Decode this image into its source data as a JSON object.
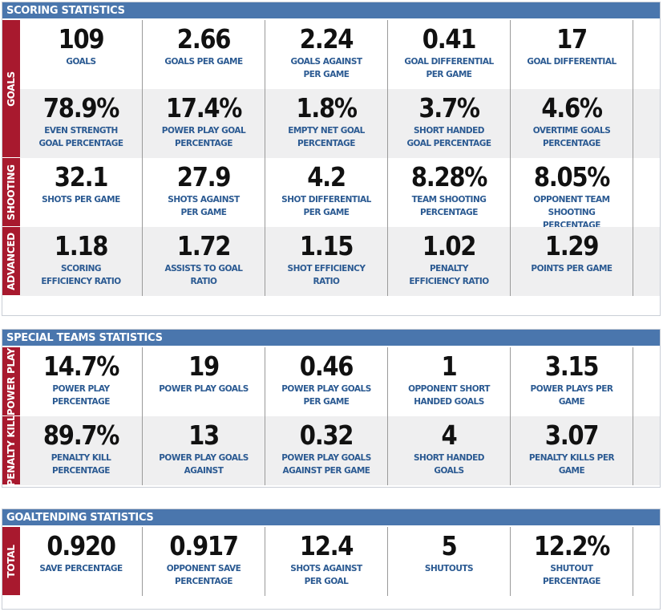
{
  "scoring": {
    "title": "SCORING STATISTICS",
    "groups": [
      {
        "label": "GOALS",
        "rows": [
          [
            {
              "value": "109",
              "label": "GOALS"
            },
            {
              "value": "2.66",
              "label": "GOALS PER GAME"
            },
            {
              "value": "2.24",
              "label": "GOALS AGAINST PER GAME"
            },
            {
              "value": "0.41",
              "label": "GOAL DIFFERENTIAL PER GAME"
            },
            {
              "value": "17",
              "label": "GOAL DIFFERENTIAL"
            }
          ],
          [
            {
              "value": "78.9%",
              "label": "EVEN STRENGTH GOAL PERCENTAGE"
            },
            {
              "value": "17.4%",
              "label": "POWER PLAY GOAL PERCENTAGE"
            },
            {
              "value": "1.8%",
              "label": "EMPTY NET GOAL PERCENTAGE"
            },
            {
              "value": "3.7%",
              "label": "SHORT HANDED GOAL PERCENTAGE"
            },
            {
              "value": "4.6%",
              "label": "OVERTIME GOALS PERCENTAGE"
            }
          ]
        ]
      },
      {
        "label": "SHOOTING",
        "rows": [
          [
            {
              "value": "32.1",
              "label": "SHOTS PER GAME"
            },
            {
              "value": "27.9",
              "label": "SHOTS AGAINST PER GAME"
            },
            {
              "value": "4.2",
              "label": "SHOT DIFFERENTIAL PER GAME"
            },
            {
              "value": "8.28%",
              "label": "TEAM SHOOTING PERCENTAGE"
            },
            {
              "value": "8.05%",
              "label": "OPPONENT TEAM SHOOTING PERCENTAGE"
            }
          ]
        ]
      },
      {
        "label": "ADVANCED",
        "rows": [
          [
            {
              "value": "1.18",
              "label": "SCORING EFFICIENCY RATIO"
            },
            {
              "value": "1.72",
              "label": "ASSISTS TO GOAL RATIO"
            },
            {
              "value": "1.15",
              "label": "SHOT EFFICIENCY RATIO"
            },
            {
              "value": "1.02",
              "label": "PENALTY EFFICIENCY RATIO"
            },
            {
              "value": "1.29",
              "label": "POINTS PER GAME"
            }
          ]
        ]
      }
    ]
  },
  "special": {
    "title": "SPECIAL TEAMS STATISTICS",
    "groups": [
      {
        "label": "POWER PLAY",
        "rows": [
          [
            {
              "value": "14.7%",
              "label": "POWER PLAY PERCENTAGE"
            },
            {
              "value": "19",
              "label": "POWER PLAY GOALS"
            },
            {
              "value": "0.46",
              "label": "POWER PLAY GOALS PER GAME"
            },
            {
              "value": "1",
              "label": "OPPONENT SHORT HANDED GOALS"
            },
            {
              "value": "3.15",
              "label": "POWER PLAYS PER GAME"
            }
          ]
        ]
      },
      {
        "label": "PENALTY KILL",
        "rows": [
          [
            {
              "value": "89.7%",
              "label": "PENALTY KILL PERCENTAGE"
            },
            {
              "value": "13",
              "label": "POWER PLAY GOALS AGAINST"
            },
            {
              "value": "0.32",
              "label": "POWER PLAY GOALS AGAINST PER GAME"
            },
            {
              "value": "4",
              "label": "SHORT HANDED GOALS"
            },
            {
              "value": "3.07",
              "label": "PENALTY KILLS PER GAME"
            }
          ]
        ]
      }
    ]
  },
  "goaltending": {
    "title": "GOALTENDING STATISTICS",
    "groups": [
      {
        "label": "TOTAL",
        "rows": [
          [
            {
              "value": "0.920",
              "label": "SAVE PERCENTAGE"
            },
            {
              "value": "0.917",
              "label": "OPPONENT SAVE PERCENTAGE"
            },
            {
              "value": "12.4",
              "label": "SHOTS AGAINST PER GOAL"
            },
            {
              "value": "5",
              "label": "SHUTOUTS"
            },
            {
              "value": "12.2%",
              "label": "SHUTOUT PERCENTAGE"
            }
          ]
        ]
      }
    ]
  },
  "colors": {
    "header_bg": "#4a76ad",
    "side_label_bg": "#a8192e",
    "stat_label": "#2b5a92",
    "row_gray": "#efeff0"
  }
}
